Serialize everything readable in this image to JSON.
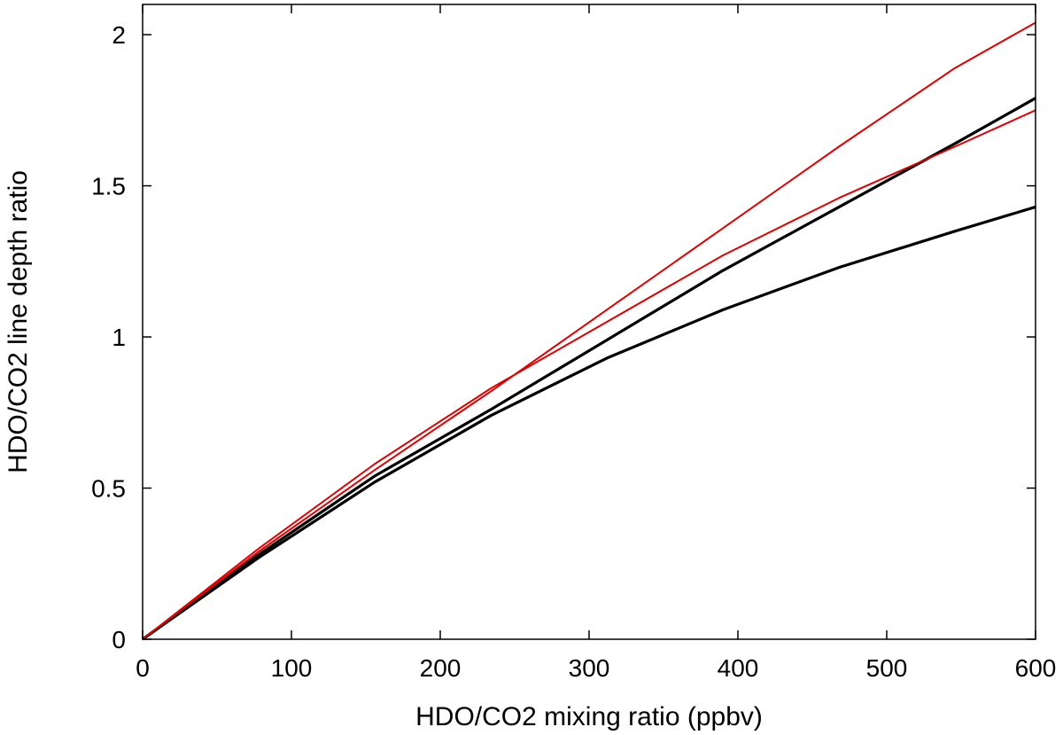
{
  "chart_data": {
    "type": "line",
    "title": "",
    "xlabel": "HDO/CO2 mixing ratio (ppbv)",
    "ylabel": "HDO/CO2 line depth ratio",
    "xlim": [
      0,
      600
    ],
    "ylim": [
      0,
      2.1
    ],
    "xticks": [
      0,
      100,
      200,
      300,
      400,
      500,
      600
    ],
    "xtick_labels": [
      "0",
      "100",
      "200",
      "300",
      "400",
      "500",
      "600"
    ],
    "yticks": [
      0,
      0.5,
      1,
      1.5,
      2
    ],
    "ytick_labels": [
      "0",
      "0.5",
      "1",
      "1.5",
      "2"
    ],
    "grid": false,
    "legend": "none",
    "series": [
      {
        "color": "#000000",
        "x": [
          0,
          78,
          156,
          234,
          312,
          390,
          468,
          546,
          600
        ],
        "y": [
          0,
          0.27,
          0.52,
          0.74,
          0.93,
          1.09,
          1.23,
          1.35,
          1.43
        ]
      },
      {
        "color": "#000000",
        "x": [
          0,
          78,
          156,
          234,
          312,
          390,
          468,
          546,
          600
        ],
        "y": [
          0,
          0.28,
          0.54,
          0.76,
          0.99,
          1.22,
          1.43,
          1.64,
          1.79
        ]
      },
      {
        "color": "#e00000",
        "x": [
          0,
          78,
          156,
          234,
          312,
          390,
          468,
          546,
          600
        ],
        "y": [
          0,
          0.3,
          0.58,
          0.83,
          1.05,
          1.27,
          1.46,
          1.63,
          1.75
        ]
      },
      {
        "color": "#e00000",
        "x": [
          0,
          78,
          156,
          234,
          312,
          390,
          468,
          546,
          600
        ],
        "y": [
          0,
          0.29,
          0.56,
          0.82,
          1.09,
          1.36,
          1.63,
          1.89,
          2.04
        ]
      }
    ]
  }
}
